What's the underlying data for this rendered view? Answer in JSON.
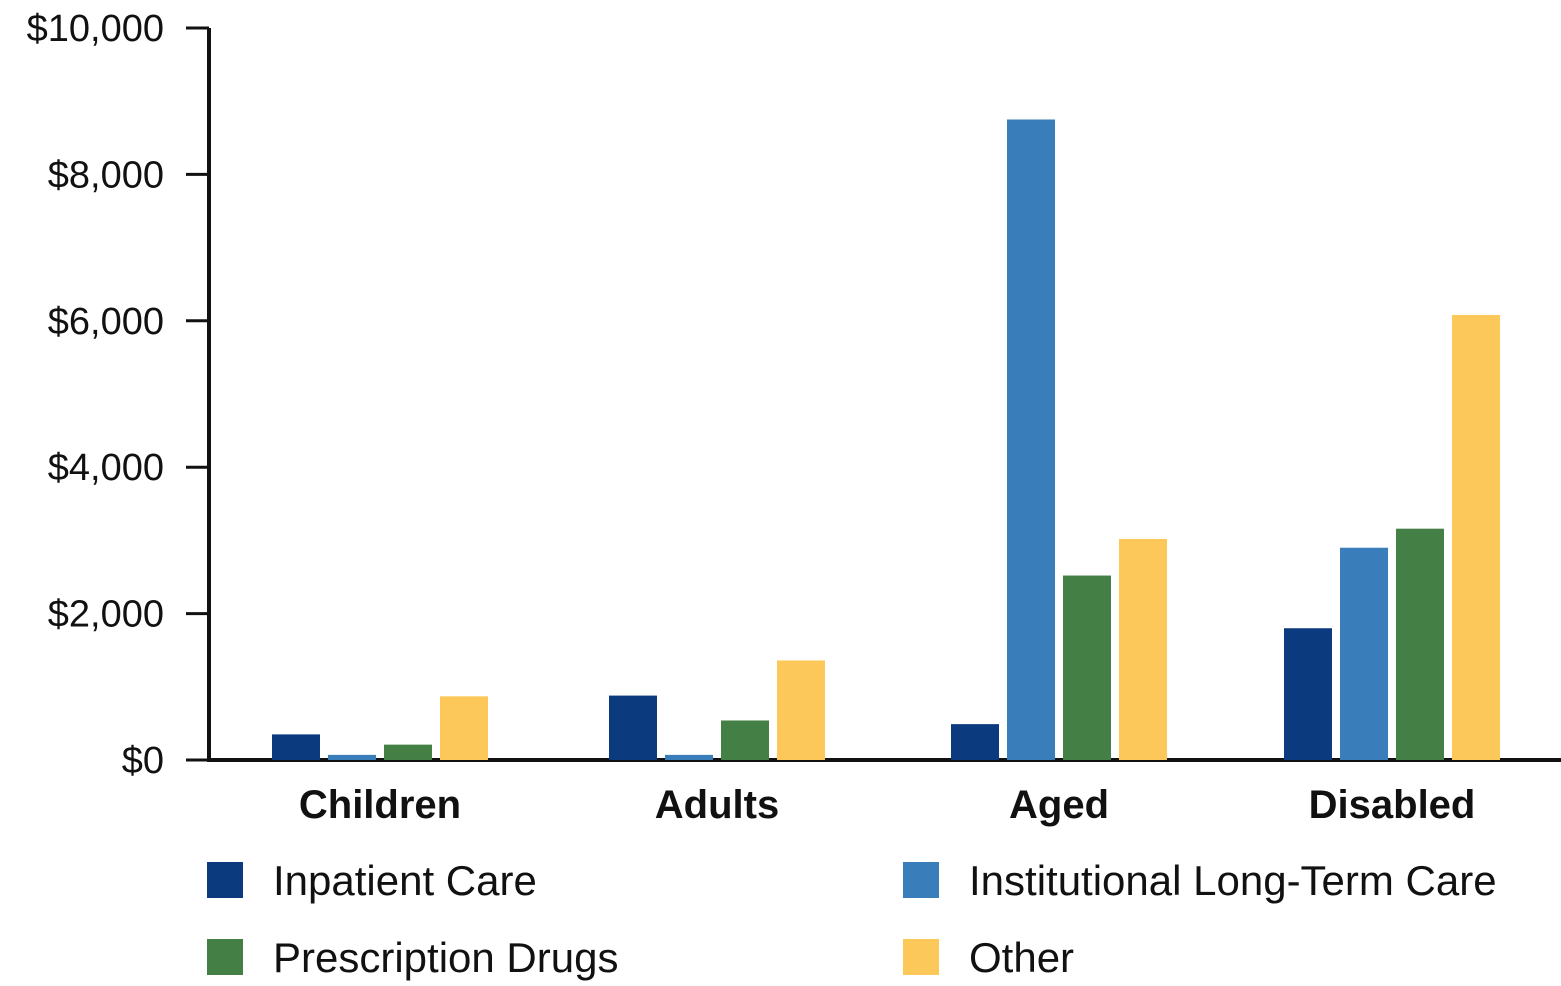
{
  "chart_data": {
    "type": "bar",
    "categories": [
      "Children",
      "Adults",
      "Aged",
      "Disabled"
    ],
    "series": [
      {
        "name": "Inpatient Care",
        "color": "#0b3a7e",
        "values": [
          350,
          880,
          490,
          1800
        ]
      },
      {
        "name": "Institutional Long-Term Care",
        "color": "#3a7dbb",
        "values": [
          70,
          70,
          8750,
          2900
        ]
      },
      {
        "name": "Prescription Drugs",
        "color": "#447f45",
        "values": [
          210,
          540,
          2520,
          3160
        ]
      },
      {
        "name": "Other",
        "color": "#fcc85a",
        "values": [
          870,
          1360,
          3020,
          6080
        ]
      }
    ],
    "y_ticks": [
      "$0",
      "$2,000",
      "$4,000",
      "$6,000",
      "$8,000",
      "$10,000"
    ],
    "ylim": [
      0,
      10000
    ],
    "title": "",
    "xlabel": "",
    "ylabel": "",
    "legend_position": "bottom",
    "grid": false
  }
}
